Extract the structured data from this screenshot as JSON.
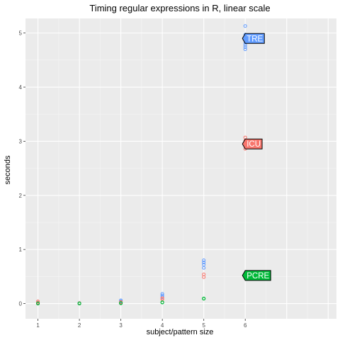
{
  "chart_data": {
    "type": "scatter",
    "title": "Timing regular expressions in R, linear scale",
    "xlabel": "subject/pattern size",
    "ylabel": "seconds",
    "xlim": [
      0.7,
      8.2
    ],
    "ylim": [
      -0.28,
      5.27
    ],
    "x_ticks": [
      1,
      2,
      3,
      4,
      5,
      6
    ],
    "y_ticks": [
      0,
      1,
      2,
      3,
      4,
      5
    ],
    "grid": true,
    "legend": "none",
    "series": [
      {
        "name": "TRE",
        "color": "#619CFF",
        "label_at": {
          "x": 6,
          "y": 4.9
        },
        "points": [
          {
            "x": 1,
            "y": 0.01
          },
          {
            "x": 1,
            "y": 0.02
          },
          {
            "x": 2,
            "y": 0.01
          },
          {
            "x": 2,
            "y": 0.01
          },
          {
            "x": 3,
            "y": 0.02
          },
          {
            "x": 3,
            "y": 0.04
          },
          {
            "x": 3,
            "y": 0.06
          },
          {
            "x": 4,
            "y": 0.12
          },
          {
            "x": 4,
            "y": 0.15
          },
          {
            "x": 4,
            "y": 0.18
          },
          {
            "x": 5,
            "y": 0.66
          },
          {
            "x": 5,
            "y": 0.72
          },
          {
            "x": 5,
            "y": 0.76
          },
          {
            "x": 5,
            "y": 0.8
          },
          {
            "x": 6,
            "y": 4.7
          },
          {
            "x": 6,
            "y": 4.74
          },
          {
            "x": 6,
            "y": 4.78
          },
          {
            "x": 6,
            "y": 4.82
          },
          {
            "x": 6,
            "y": 4.9
          },
          {
            "x": 6,
            "y": 4.97
          },
          {
            "x": 6,
            "y": 5.13
          }
        ]
      },
      {
        "name": "ICU",
        "color": "#F8766D",
        "label_at": {
          "x": 6,
          "y": 2.95
        },
        "points": [
          {
            "x": 1,
            "y": 0.02
          },
          {
            "x": 1,
            "y": 0.04
          },
          {
            "x": 2,
            "y": 0.01
          },
          {
            "x": 3,
            "y": 0.02
          },
          {
            "x": 3,
            "y": 0.03
          },
          {
            "x": 4,
            "y": 0.08
          },
          {
            "x": 4,
            "y": 0.1
          },
          {
            "x": 5,
            "y": 0.49
          },
          {
            "x": 5,
            "y": 0.54
          },
          {
            "x": 6,
            "y": 2.86
          },
          {
            "x": 6,
            "y": 2.91
          },
          {
            "x": 6,
            "y": 2.96
          },
          {
            "x": 6,
            "y": 3.01
          },
          {
            "x": 6,
            "y": 3.07
          }
        ]
      },
      {
        "name": "PCRE",
        "color": "#00BA38",
        "label_at": {
          "x": 6,
          "y": 0.52
        },
        "points": [
          {
            "x": 1,
            "y": 0.0
          },
          {
            "x": 1,
            "y": 0.005
          },
          {
            "x": 2,
            "y": 0.0
          },
          {
            "x": 2,
            "y": 0.004
          },
          {
            "x": 3,
            "y": 0.005
          },
          {
            "x": 3,
            "y": 0.01
          },
          {
            "x": 4,
            "y": 0.02
          },
          {
            "x": 4,
            "y": 0.025
          },
          {
            "x": 5,
            "y": 0.09
          },
          {
            "x": 5,
            "y": 0.095
          },
          {
            "x": 6,
            "y": 0.51
          },
          {
            "x": 6,
            "y": 0.53
          },
          {
            "x": 6,
            "y": 0.55
          }
        ]
      }
    ]
  }
}
